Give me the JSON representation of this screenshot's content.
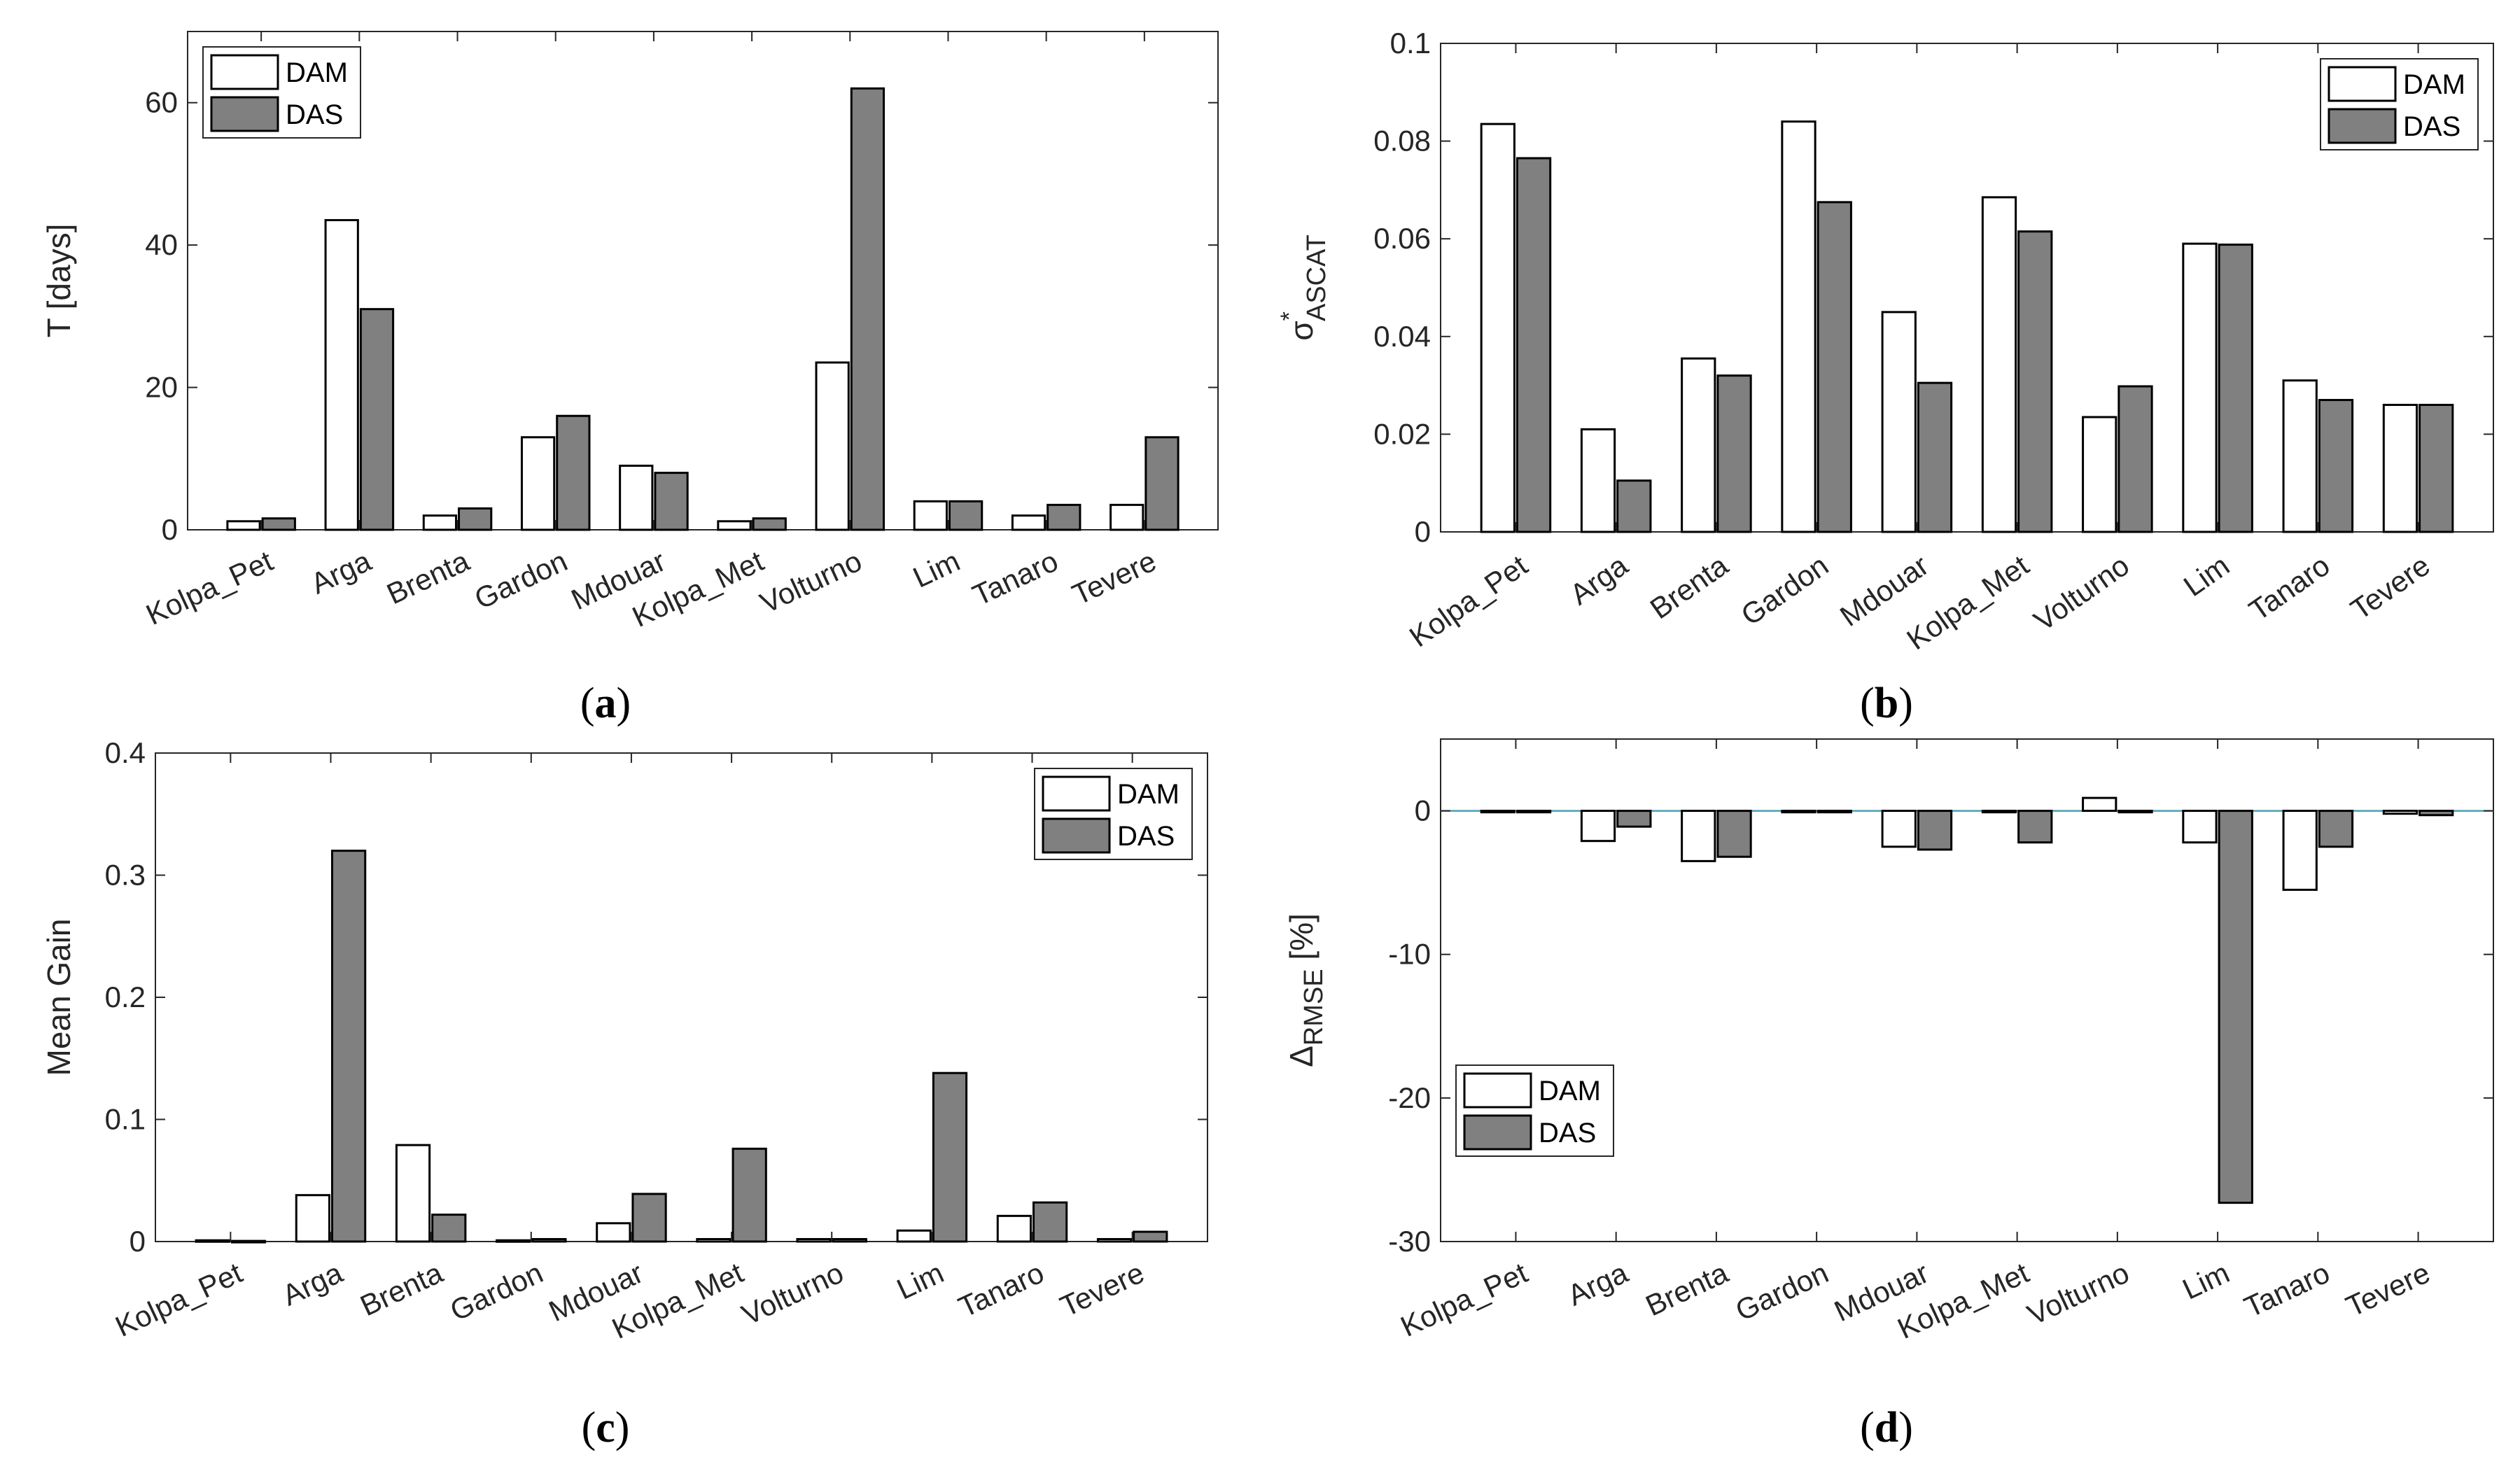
{
  "colors": {
    "dam_fill": "#ffffff",
    "das_fill": "#808080",
    "edge": "#000000",
    "axis": "#262626",
    "zero_line": "#4a9fb5"
  },
  "chart_data": [
    {
      "id": "a",
      "type": "bar",
      "panel_label": "a",
      "ylabel": "T [days]",
      "ylim": [
        0,
        70
      ],
      "yticks": [
        0,
        20,
        40,
        60
      ],
      "ytick_labels": [
        "0",
        "20",
        "40",
        "60"
      ],
      "legend_position": "top-left",
      "categories": [
        "Kolpa_Pet",
        "Arga",
        "Brenta",
        "Gardon",
        "Mdouar",
        "Kolpa_Met",
        "Volturno",
        "Lim",
        "Tanaro",
        "Tevere"
      ],
      "series": [
        {
          "name": "DAM",
          "values": [
            1.2,
            43.5,
            2.0,
            13.0,
            9.0,
            1.2,
            23.5,
            4.0,
            2.0,
            3.5
          ]
        },
        {
          "name": "DAS",
          "values": [
            1.6,
            31.0,
            3.0,
            16.0,
            8.0,
            1.6,
            62.0,
            4.0,
            3.5,
            13.0
          ]
        }
      ]
    },
    {
      "id": "b",
      "type": "bar",
      "panel_label": "b",
      "ylabel_symbol": "σ",
      "ylabel_superscript": "*",
      "ylabel_subscript": "ASCAT",
      "ylim": [
        0,
        0.1
      ],
      "yticks": [
        0,
        0.02,
        0.04,
        0.06,
        0.08,
        0.1
      ],
      "ytick_labels": [
        "0",
        "0.02",
        "0.04",
        "0.06",
        "0.08",
        "0.1"
      ],
      "legend_position": "top-right",
      "categories": [
        "Kolpa_Pet",
        "Arga",
        "Brenta",
        "Gardon",
        "Mdouar",
        "Kolpa_Met",
        "Volturno",
        "Lim",
        "Tanaro",
        "Tevere"
      ],
      "series": [
        {
          "name": "DAM",
          "values": [
            0.0835,
            0.021,
            0.0355,
            0.084,
            0.045,
            0.0685,
            0.0235,
            0.059,
            0.031,
            0.026
          ]
        },
        {
          "name": "DAS",
          "values": [
            0.0765,
            0.0105,
            0.032,
            0.0675,
            0.0305,
            0.0615,
            0.0298,
            0.0588,
            0.027,
            0.026
          ]
        }
      ]
    },
    {
      "id": "c",
      "type": "bar",
      "panel_label": "c",
      "ylabel": "Mean Gain",
      "ylim": [
        0,
        0.4
      ],
      "yticks": [
        0,
        0.1,
        0.2,
        0.3,
        0.4
      ],
      "ytick_labels": [
        "0",
        "0.1",
        "0.2",
        "0.3",
        "0.4"
      ],
      "legend_position": "top-right",
      "categories": [
        "Kolpa_Pet",
        "Arga",
        "Brenta",
        "Gardon",
        "Mdouar",
        "Kolpa_Met",
        "Volturno",
        "Lim",
        "Tanaro",
        "Tevere"
      ],
      "series": [
        {
          "name": "DAM",
          "values": [
            0.001,
            0.038,
            0.079,
            0.001,
            0.015,
            0.002,
            0.002,
            0.009,
            0.021,
            0.002
          ]
        },
        {
          "name": "DAS",
          "values": [
            0.0005,
            0.32,
            0.022,
            0.002,
            0.039,
            0.076,
            0.002,
            0.138,
            0.032,
            0.008
          ]
        }
      ]
    },
    {
      "id": "d",
      "type": "bar",
      "panel_label": "d",
      "ylabel_symbol": "Δ",
      "ylabel_subscript": "RMSE",
      "ylabel_suffix": " [%]",
      "ylim": [
        -30,
        5
      ],
      "yticks": [
        -30,
        -20,
        -10,
        0
      ],
      "ytick_labels": [
        "-30",
        "-20",
        "-10",
        "0"
      ],
      "legend_position": "bottom-left",
      "zero_line": true,
      "categories": [
        "Kolpa_Pet",
        "Arga",
        "Brenta",
        "Gardon",
        "Mdouar",
        "Kolpa_Met",
        "Volturno",
        "Lim",
        "Tanaro",
        "Tevere"
      ],
      "series": [
        {
          "name": "DAM",
          "values": [
            -0.1,
            -2.1,
            -3.5,
            -0.1,
            -2.5,
            -0.1,
            0.9,
            -2.2,
            -5.5,
            -0.2
          ]
        },
        {
          "name": "DAS",
          "values": [
            -0.1,
            -1.1,
            -3.2,
            -0.1,
            -2.7,
            -2.2,
            -0.1,
            -27.3,
            -2.5,
            -0.3
          ]
        }
      ]
    }
  ]
}
